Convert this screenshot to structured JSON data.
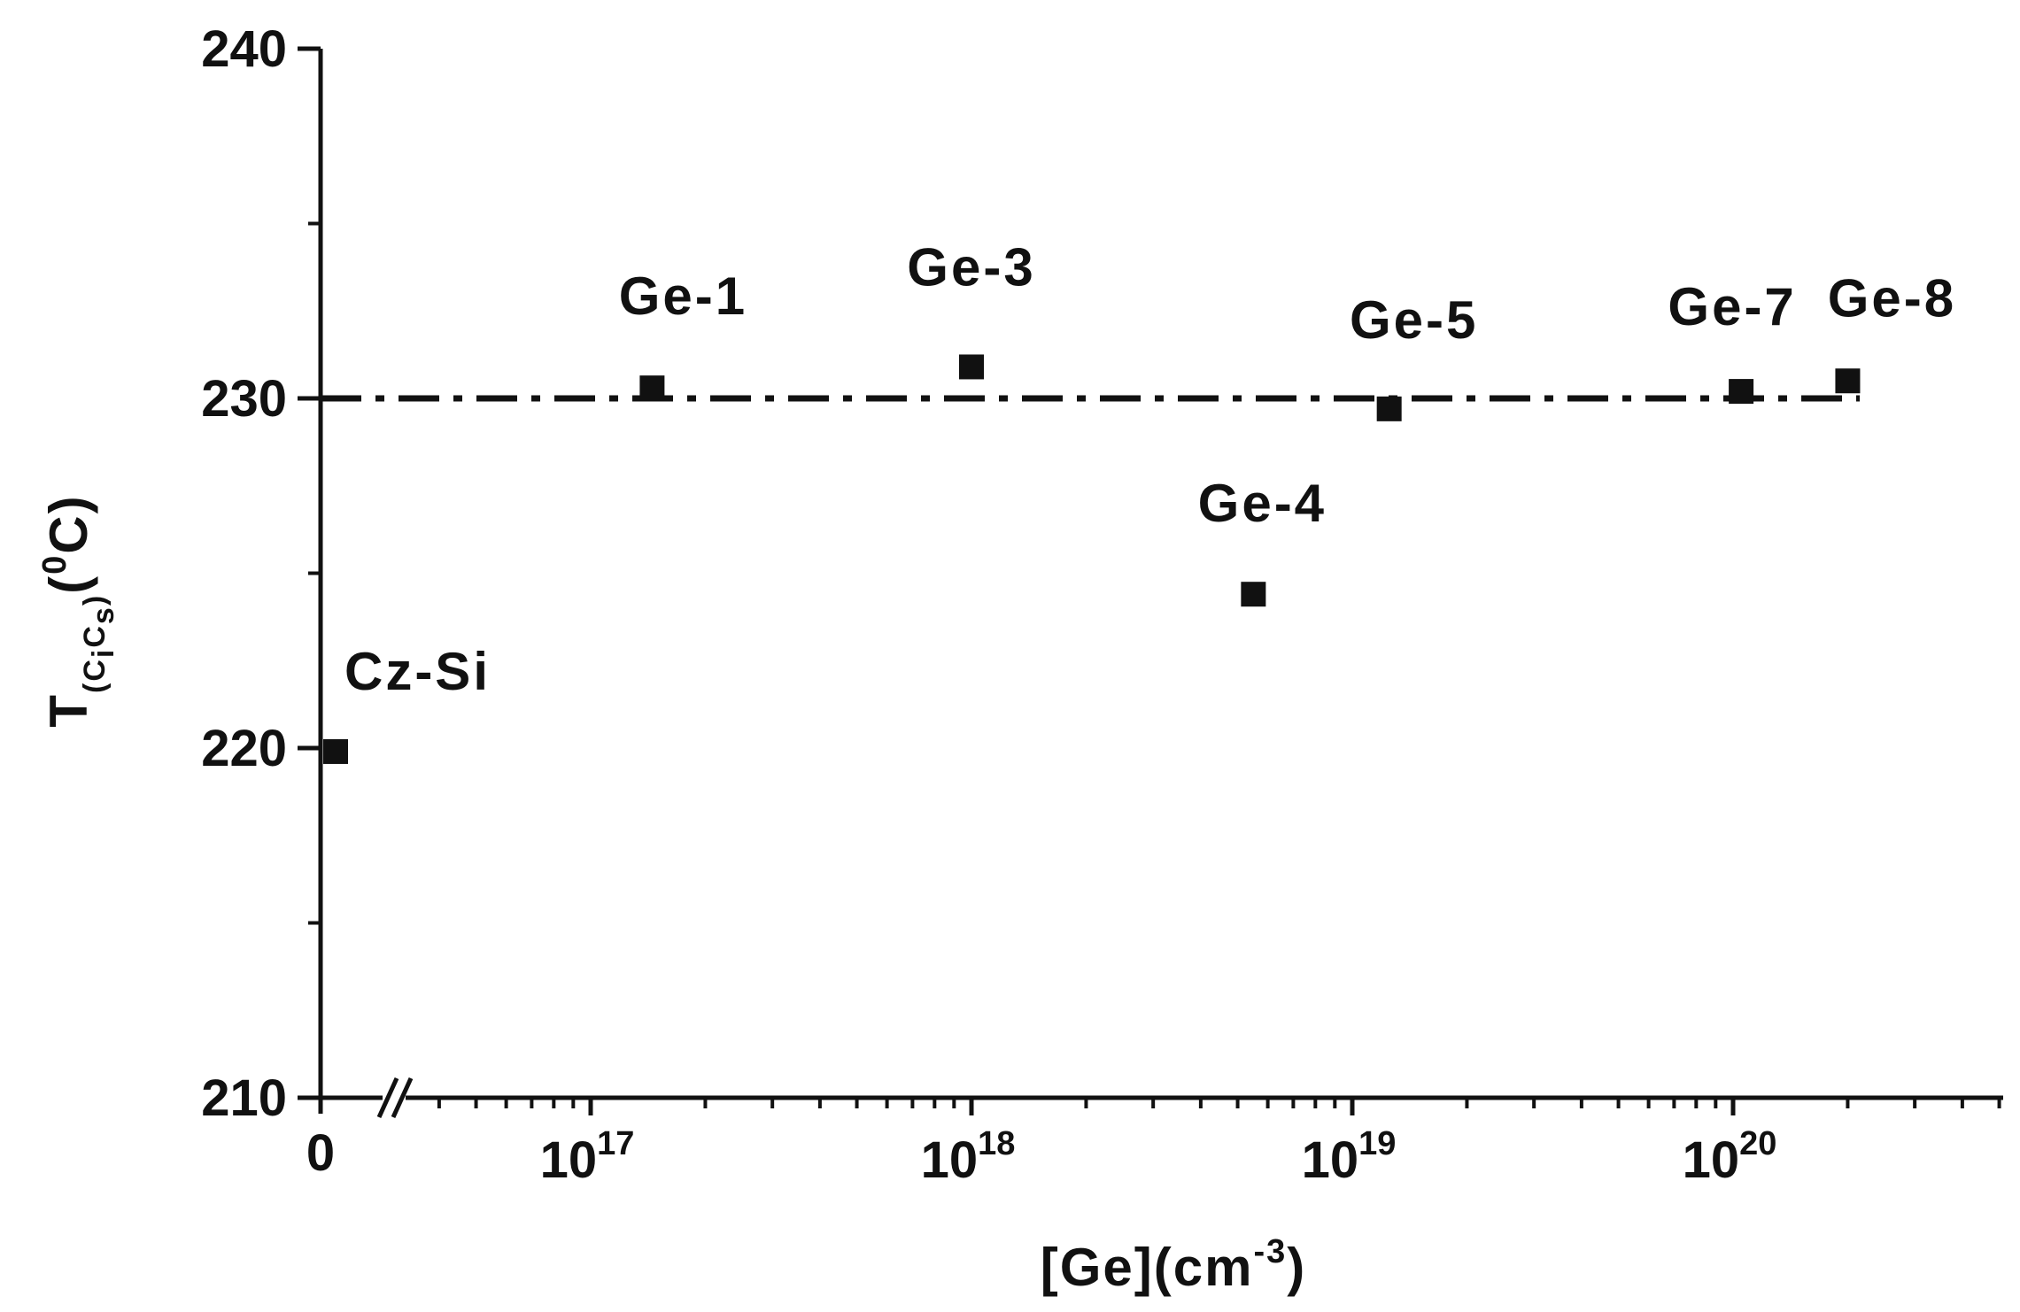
{
  "chart_data": {
    "type": "scatter",
    "title": "",
    "xlabel": {
      "base": "[Ge](cm",
      "exponent": "-3",
      "close": ")"
    },
    "ylabel": {
      "main": "T",
      "subscript": "(C",
      "subscript_i": "i",
      "subscript_mid": "C",
      "subscript_s": "s",
      "subscript_close": ")",
      "unit_open": "(",
      "unit_sup": "0",
      "unit": "C)"
    },
    "x_scale": "log",
    "xlim": [
      3e+16,
      5e+20
    ],
    "ylim": [
      210,
      240
    ],
    "x_ticks": [
      {
        "value": 1e+17,
        "base": "10",
        "exp": "17"
      },
      {
        "value": 1e+18,
        "base": "10",
        "exp": "18"
      },
      {
        "value": 1e+19,
        "base": "10",
        "exp": "19"
      },
      {
        "value": 1e+20,
        "base": "10",
        "exp": "20"
      }
    ],
    "x_zero_label": "0",
    "axis_break": true,
    "y_ticks": [
      210,
      220,
      230,
      240
    ],
    "y_minor_ticks": [
      215,
      225,
      235
    ],
    "points": [
      {
        "label": "Cz-Si",
        "x": 0,
        "y": 219.9
      },
      {
        "label": "Ge-1",
        "x": 1.45e+17,
        "y": 230.3
      },
      {
        "label": "Ge-3",
        "x": 1e+18,
        "y": 230.9
      },
      {
        "label": "Ge-4",
        "x": 5.5e+18,
        "y": 224.4
      },
      {
        "label": "Ge-5",
        "x": 1.25e+19,
        "y": 229.7
      },
      {
        "label": "Ge-7",
        "x": 1.05e+20,
        "y": 230.2
      },
      {
        "label": "Ge-8",
        "x": 2e+20,
        "y": 230.5
      }
    ],
    "reference_line": {
      "y": 230,
      "style": "dash-dot"
    },
    "grid": false,
    "marker": "square",
    "color": "#111111"
  }
}
